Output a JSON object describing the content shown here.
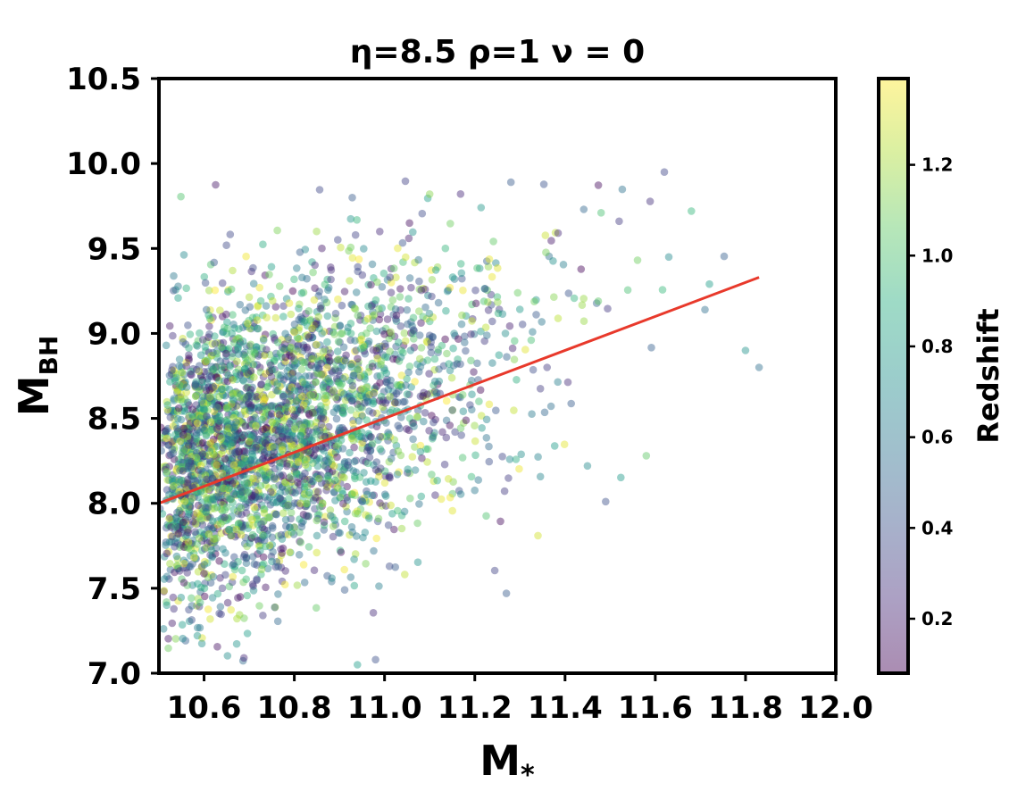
{
  "chart_data": {
    "type": "scatter",
    "title": "η=8.5 ρ=1 ν = 0",
    "xlabel": {
      "main": "M",
      "sub": "*"
    },
    "ylabel": {
      "main": "M",
      "sub": "BH"
    },
    "xlim": [
      10.5,
      12.0
    ],
    "ylim": [
      7.0,
      10.5
    ],
    "x_ticks": [
      "10.6",
      "10.8",
      "11.0",
      "11.2",
      "11.4",
      "11.6",
      "11.8",
      "12.0"
    ],
    "y_ticks": [
      "7.0",
      "7.5",
      "8.0",
      "8.5",
      "9.0",
      "9.5",
      "10.0",
      "10.5"
    ],
    "grid": false,
    "colormap": "viridis",
    "point_alpha": 0.45,
    "colorbar": {
      "label": "Redshift",
      "range": [
        0.08,
        1.39
      ],
      "ticks": [
        "0.2",
        "0.4",
        "0.6",
        "0.8",
        "1.0",
        "1.2"
      ],
      "position": "right"
    },
    "fit_line": {
      "color": "#e8392b",
      "x": [
        10.5,
        11.83
      ],
      "y": [
        8.0,
        9.33
      ]
    },
    "scatter_distribution": {
      "n_points": 3200,
      "x_min": 10.5,
      "x_shape": "decreasing toward high mass",
      "y_mean_at_x_min": 8.15,
      "y_slope": 1.0,
      "y_sigma": 0.42
    },
    "notable_points": [
      {
        "x": 11.62,
        "y": 9.95,
        "z": 0.35
      },
      {
        "x": 11.28,
        "y": 9.89,
        "z": 0.45
      },
      {
        "x": 11.1,
        "y": 9.82,
        "z": 1.15
      },
      {
        "x": 11.68,
        "y": 9.72,
        "z": 0.95
      },
      {
        "x": 11.83,
        "y": 8.8,
        "z": 0.55
      },
      {
        "x": 11.8,
        "y": 8.9,
        "z": 0.75
      },
      {
        "x": 11.72,
        "y": 9.29,
        "z": 0.8
      },
      {
        "x": 11.71,
        "y": 9.14,
        "z": 0.55
      },
      {
        "x": 11.58,
        "y": 8.28,
        "z": 1.05
      },
      {
        "x": 11.49,
        "y": 8.01,
        "z": 0.4
      },
      {
        "x": 11.27,
        "y": 7.47,
        "z": 0.45
      },
      {
        "x": 11.34,
        "y": 7.81,
        "z": 1.3
      },
      {
        "x": 11.63,
        "y": 9.45,
        "z": 0.7
      },
      {
        "x": 11.48,
        "y": 9.71,
        "z": 1.0
      },
      {
        "x": 11.52,
        "y": 9.66,
        "z": 0.3
      },
      {
        "x": 10.94,
        "y": 7.05,
        "z": 0.8
      },
      {
        "x": 10.98,
        "y": 7.08,
        "z": 0.4
      }
    ]
  }
}
